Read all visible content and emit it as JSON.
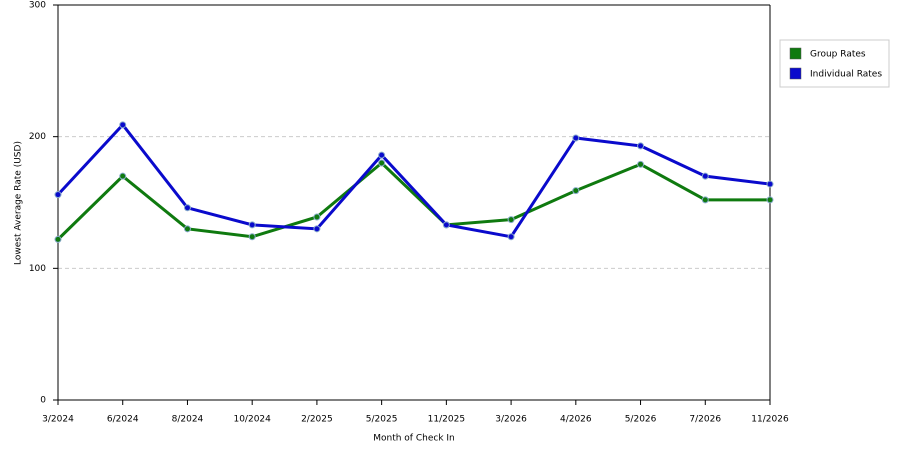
{
  "chart_data": {
    "type": "line",
    "x_label": "Month of Check In",
    "y_label": "Lowest Average Rate (USD)",
    "categories": [
      "3/2024",
      "6/2024",
      "8/2024",
      "10/2024",
      "2/2025",
      "5/2025",
      "11/2025",
      "3/2026",
      "4/2026",
      "5/2026",
      "7/2026",
      "11/2026"
    ],
    "series": [
      {
        "name": "Group Rates",
        "color": "#0f7a0f",
        "values": [
          122,
          170,
          130,
          124,
          139,
          180,
          133,
          137,
          159,
          179,
          152,
          152
        ]
      },
      {
        "name": "Individual Rates",
        "color": "#0a0acc",
        "values": [
          156,
          209,
          146,
          133,
          130,
          186,
          133,
          124,
          199,
          193,
          170,
          164
        ]
      }
    ],
    "ylim": [
      0,
      300
    ],
    "yticks": [
      0,
      100,
      200,
      300
    ],
    "grid": true,
    "legend": "right"
  }
}
